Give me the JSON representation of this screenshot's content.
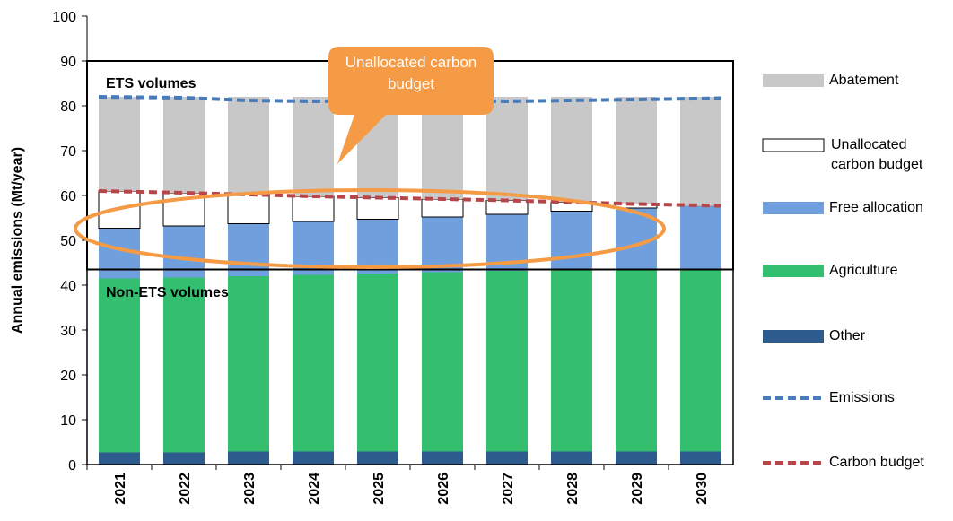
{
  "chart_data": {
    "type": "bar",
    "y_label": "Annual emissions (Mt/year)",
    "annotations": [
      "ETS volumes",
      "Non-ETS volumes",
      "Unallocated carbon budget"
    ],
    "reference_line": 43.5,
    "ets_region": [
      43.5,
      90
    ],
    "categories": [
      "2021",
      "2022",
      "2023",
      "2024",
      "2025",
      "2026",
      "2027",
      "2028",
      "2029",
      "2030"
    ],
    "ylim": [
      0,
      100
    ],
    "yticks": [
      0,
      10,
      20,
      30,
      40,
      50,
      60,
      70,
      80,
      90,
      100
    ],
    "series": [
      {
        "name": "Other",
        "type": "bar",
        "color": "#2e5b8e",
        "values": [
          2.7,
          2.7,
          2.9,
          2.9,
          2.9,
          2.9,
          2.9,
          2.9,
          2.9,
          2.9
        ]
      },
      {
        "name": "Agriculture",
        "type": "bar",
        "color": "#33bf6f",
        "values": [
          38.8,
          39.0,
          39.1,
          39.4,
          39.7,
          40.0,
          40.3,
          40.5,
          40.6,
          40.8
        ]
      },
      {
        "name": "Free allocation",
        "type": "bar",
        "color": "#6fa0dd",
        "values": [
          11.2,
          11.5,
          11.7,
          11.9,
          12.1,
          12.3,
          12.6,
          13.1,
          13.7,
          14.0
        ]
      },
      {
        "name": "Unallocated carbon budget",
        "type": "bar",
        "color": "#ffffff",
        "values": [
          8.3,
          7.4,
          6.5,
          5.6,
          4.8,
          4.0,
          3.1,
          2.0,
          0.9,
          0
        ]
      },
      {
        "name": "Abatement",
        "type": "bar",
        "color": "#c8c8c8",
        "values": [
          21.0,
          21.4,
          21.8,
          22.2,
          22.5,
          22.8,
          23.1,
          23.5,
          23.9,
          24.3
        ]
      },
      {
        "name": "Emissions",
        "type": "line",
        "color": "#4a7bb7",
        "values": [
          82.0,
          81.8,
          81.2,
          81.0,
          81.2,
          81.2,
          81.0,
          81.2,
          81.4,
          81.7
        ]
      },
      {
        "name": "Carbon budget",
        "type": "line",
        "color": "#b5474a",
        "values": [
          61.0,
          60.6,
          60.2,
          59.8,
          59.5,
          59.2,
          58.9,
          58.5,
          58.1,
          57.7
        ]
      }
    ]
  }
}
